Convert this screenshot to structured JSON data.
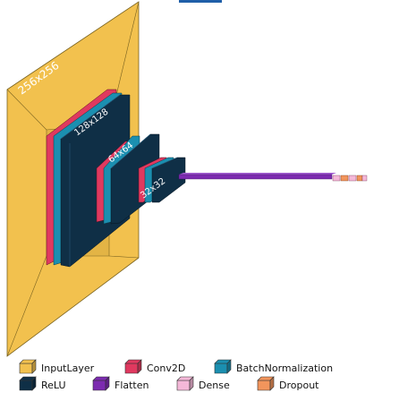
{
  "diagram": {
    "layer_dims": {
      "input": "256x256",
      "block1": "128x128",
      "block2": "64x64",
      "block3": "32x32"
    },
    "colors": {
      "InputLayer": "#f2c14e",
      "Conv2D": "#e0395f",
      "BatchNormalization": "#1b8fb0",
      "ReLU": "#0f2f46",
      "Flatten": "#7c2bb0",
      "Dense": "#f4b8d8",
      "Dropout": "#f2955c"
    },
    "legend": [
      {
        "label": "InputLayer",
        "color": "#f2c14e"
      },
      {
        "label": "Conv2D",
        "color": "#e0395f"
      },
      {
        "label": "BatchNormalization",
        "color": "#1b8fb0"
      },
      {
        "label": "ReLU",
        "color": "#0f2f46"
      },
      {
        "label": "Flatten",
        "color": "#7c2bb0"
      },
      {
        "label": "Dense",
        "color": "#f4b8d8"
      },
      {
        "label": "Dropout",
        "color": "#f2955c"
      }
    ]
  }
}
